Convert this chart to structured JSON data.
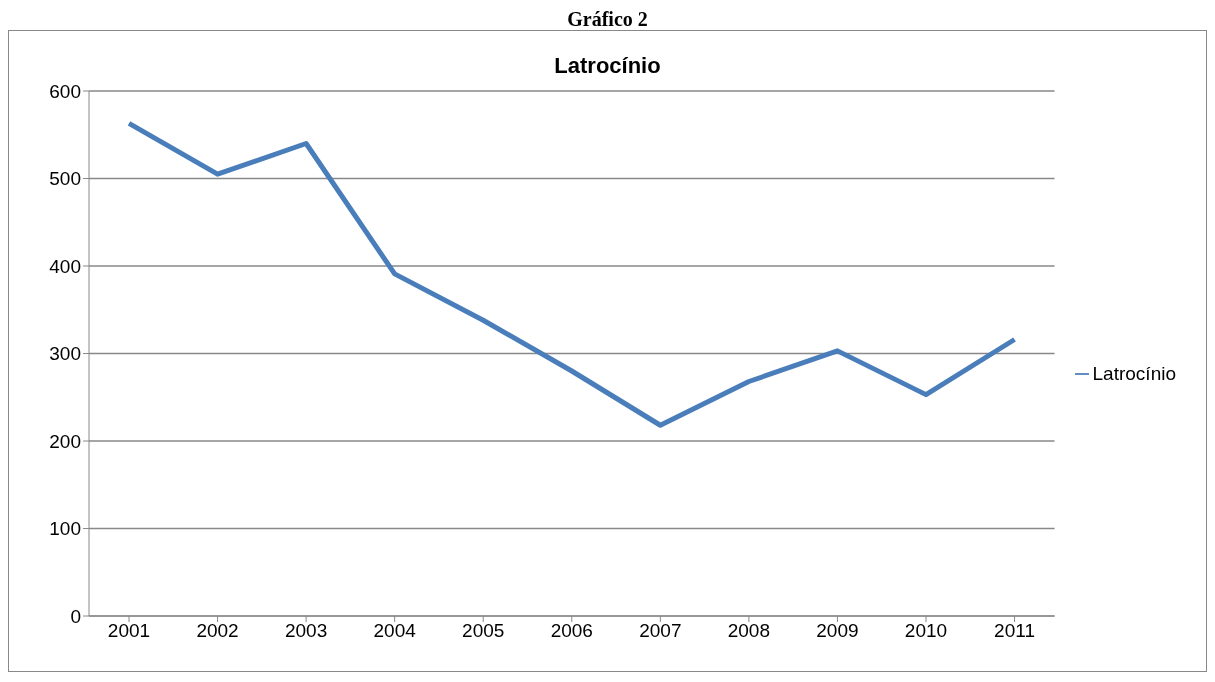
{
  "chart_data": {
    "type": "line",
    "title": "Latrocínio",
    "annotations": [
      "Gráfico 2"
    ],
    "categories": [
      "2001",
      "2002",
      "2003",
      "2004",
      "2005",
      "2006",
      "2007",
      "2008",
      "2009",
      "2010",
      "2011"
    ],
    "series": [
      {
        "name": "Latrocínio",
        "color": "#4a7ebb",
        "values": [
          563,
          505,
          540,
          391,
          338,
          280,
          218,
          268,
          303,
          253,
          316
        ]
      }
    ],
    "ylim": [
      0,
      600
    ],
    "yticks": [
      0,
      100,
      200,
      300,
      400,
      500,
      600
    ],
    "grid": "y",
    "legend": "right",
    "marker": "none",
    "line_style": "solid"
  }
}
